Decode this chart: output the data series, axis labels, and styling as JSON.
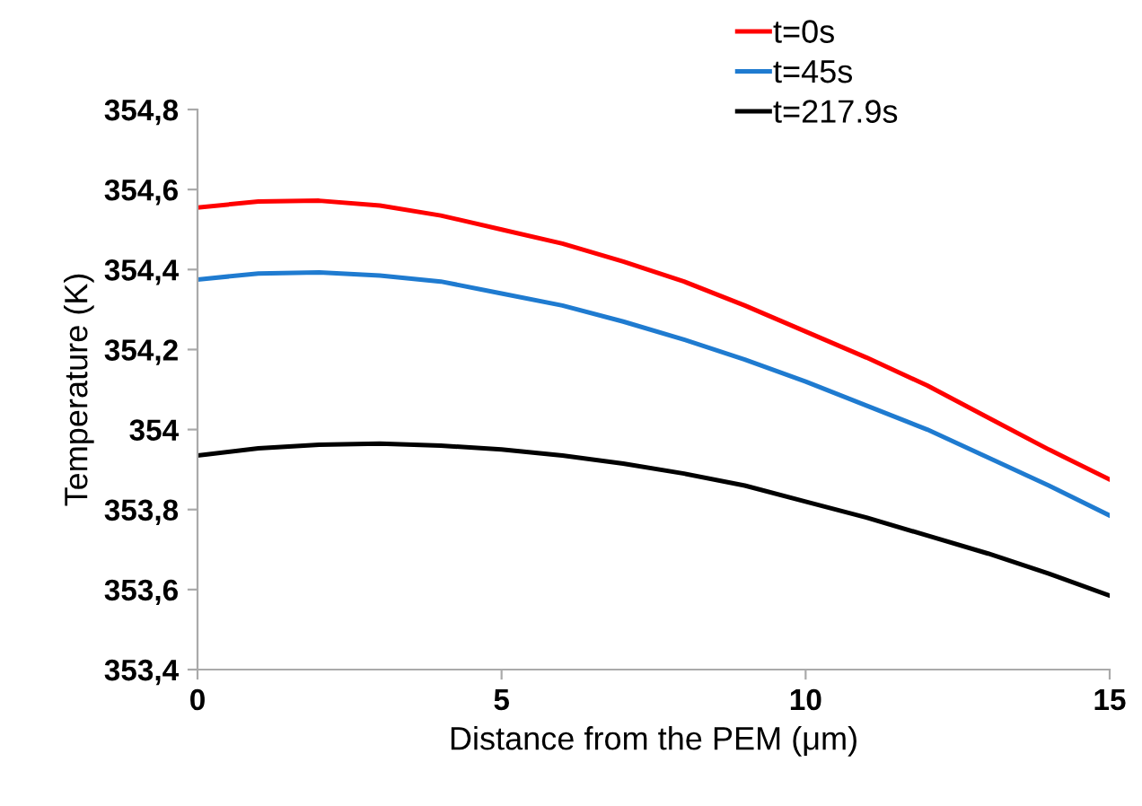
{
  "chart_data": {
    "type": "line",
    "xlabel": "Distance from the PEM (μm)",
    "ylabel": "Temperature (K)",
    "x": [
      0,
      1,
      2,
      3,
      4,
      5,
      6,
      7,
      8,
      9,
      10,
      11,
      12,
      13,
      14,
      15
    ],
    "series": [
      {
        "name": "t=0s",
        "color": "#ff0000",
        "values": [
          354.555,
          354.57,
          354.572,
          354.56,
          354.535,
          354.5,
          354.465,
          354.42,
          354.37,
          354.31,
          354.245,
          354.18,
          354.11,
          354.03,
          353.95,
          353.875
        ]
      },
      {
        "name": "t=45s",
        "color": "#1f7bd0",
        "values": [
          354.375,
          354.39,
          354.393,
          354.385,
          354.37,
          354.34,
          354.31,
          354.27,
          354.225,
          354.175,
          354.12,
          354.06,
          354.0,
          353.93,
          353.86,
          353.785
        ]
      },
      {
        "name": "t=217.9s",
        "color": "#000000",
        "values": [
          353.935,
          353.953,
          353.962,
          353.965,
          353.96,
          353.95,
          353.935,
          353.915,
          353.89,
          353.86,
          353.82,
          353.78,
          353.735,
          353.69,
          353.64,
          353.585
        ]
      }
    ],
    "xlim": [
      0,
      15
    ],
    "xticks": [
      0,
      5,
      10,
      15
    ],
    "ylim": [
      353.4,
      354.8
    ],
    "yticks": [
      {
        "value": 353.4,
        "label": "353,4"
      },
      {
        "value": 353.6,
        "label": "353,6"
      },
      {
        "value": 353.8,
        "label": "353,8"
      },
      354,
      {
        "value": 354.2,
        "label": "354,2"
      },
      {
        "value": 354.4,
        "label": "354,4"
      },
      {
        "value": 354.6,
        "label": "354,6"
      },
      {
        "value": 354.8,
        "label": "354,8"
      }
    ],
    "grid": false,
    "legend": "top",
    "marker": "none",
    "line_style": "solid"
  }
}
